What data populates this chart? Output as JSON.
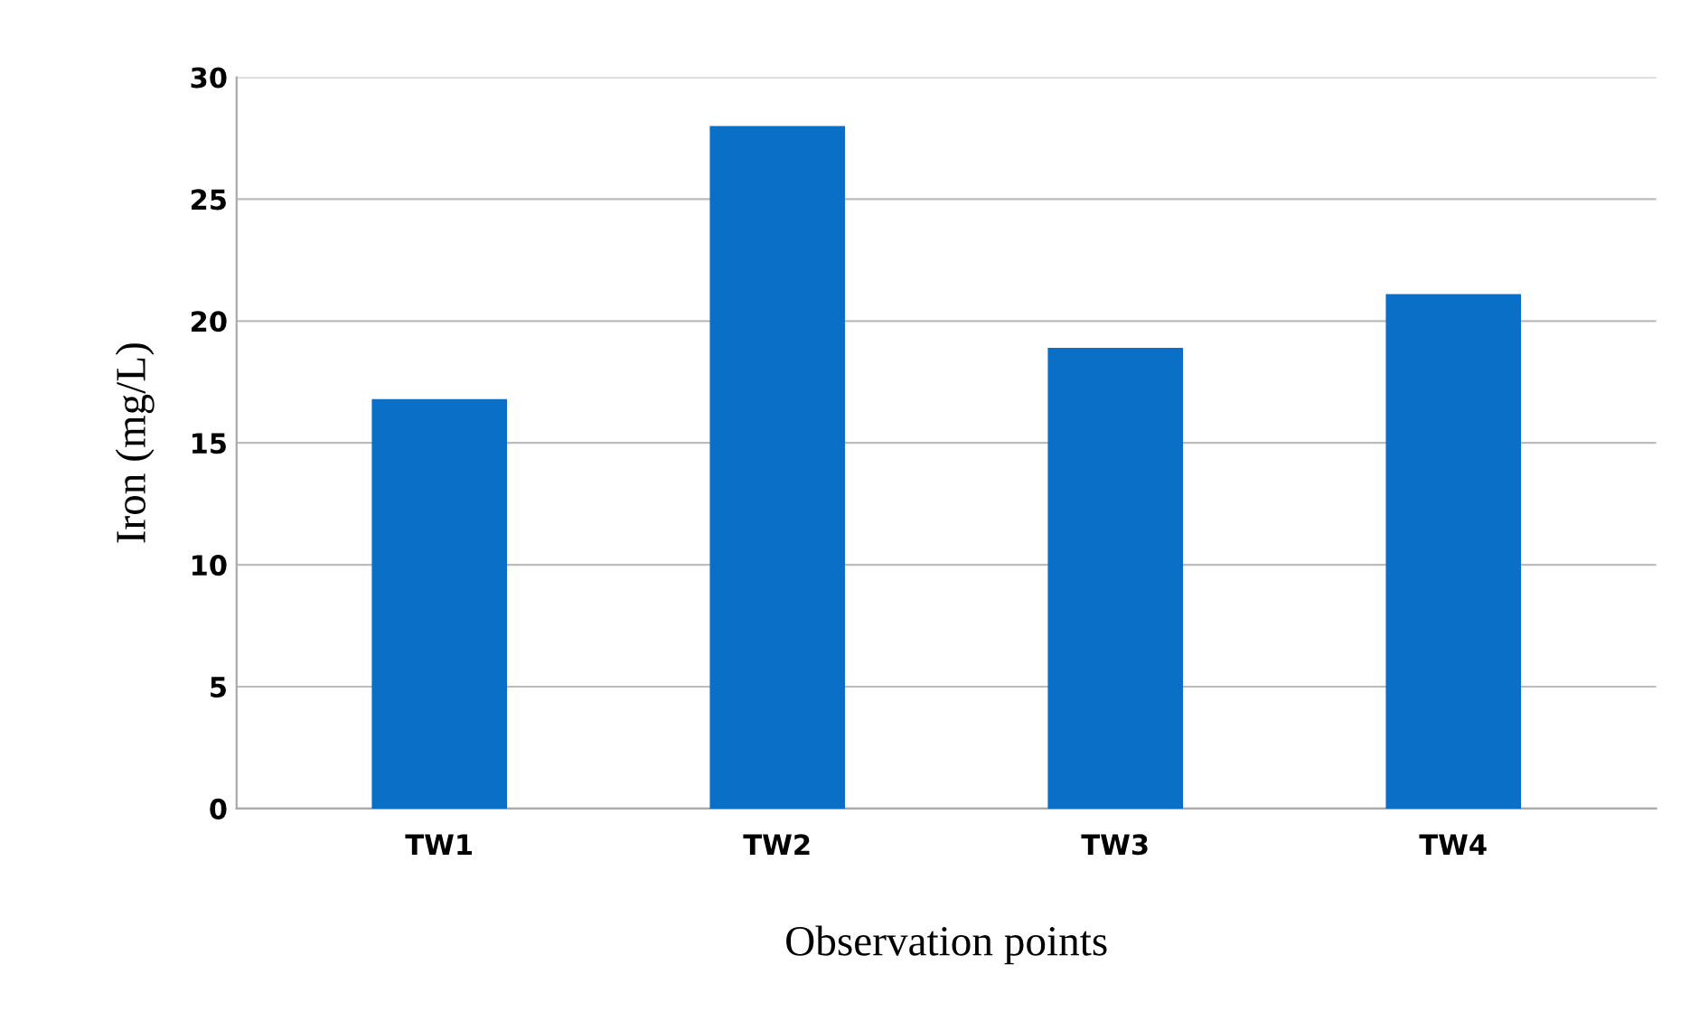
{
  "chart_data": {
    "type": "bar",
    "xlabel": "Observation points",
    "ylabel": "Iron (mg/L)",
    "categories": [
      "TW1",
      "TW2",
      "TW3",
      "TW4"
    ],
    "values": [
      16.8,
      28.0,
      18.9,
      21.1
    ],
    "color": "#0a6fc6",
    "ylim": [
      0,
      30
    ],
    "yticks": [
      0,
      5,
      10,
      15,
      20,
      25,
      30
    ],
    "grid": "y"
  }
}
